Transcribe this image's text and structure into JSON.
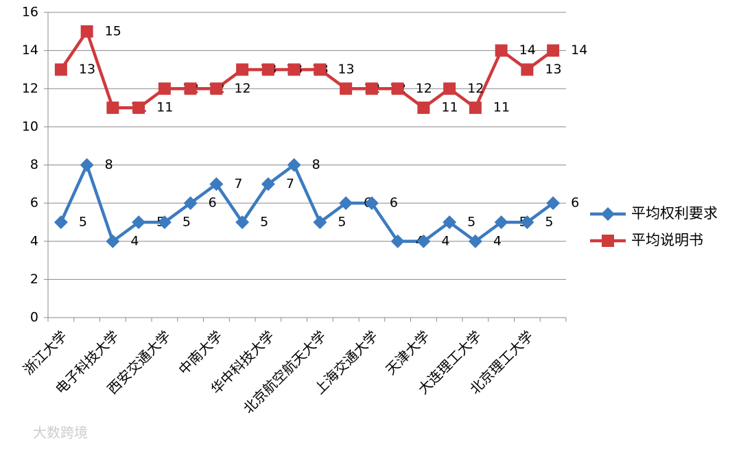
{
  "chart_data": {
    "type": "line",
    "categories": [
      "浙江大学",
      null,
      "电子科技大学",
      null,
      "西安交通大学",
      null,
      "中南大学",
      null,
      "华中科技大学",
      null,
      "北京航空航天大学",
      null,
      "上海交通大学",
      null,
      "天津大学",
      null,
      "大连理工大学",
      null,
      "北京理工大学",
      null
    ],
    "series": [
      {
        "name": "平均权利要求",
        "color": "#3c7bbf",
        "marker": "diamond",
        "values": [
          5,
          8,
          4,
          5,
          5,
          6,
          7,
          5,
          7,
          8,
          5,
          6,
          6,
          4,
          4,
          5,
          4,
          5,
          5,
          6
        ]
      },
      {
        "name": "平均说明书",
        "color": "#cf3a3d",
        "marker": "square",
        "values": [
          13,
          15,
          11,
          11,
          12,
          12,
          12,
          13,
          13,
          13,
          13,
          12,
          12,
          12,
          11,
          12,
          11,
          14,
          13,
          14
        ]
      }
    ],
    "ylim": [
      0,
      16
    ],
    "yticks": [
      0,
      2,
      4,
      6,
      8,
      10,
      12,
      14,
      16
    ],
    "grid": true,
    "legend": "right",
    "watermark": "大数跨境"
  }
}
